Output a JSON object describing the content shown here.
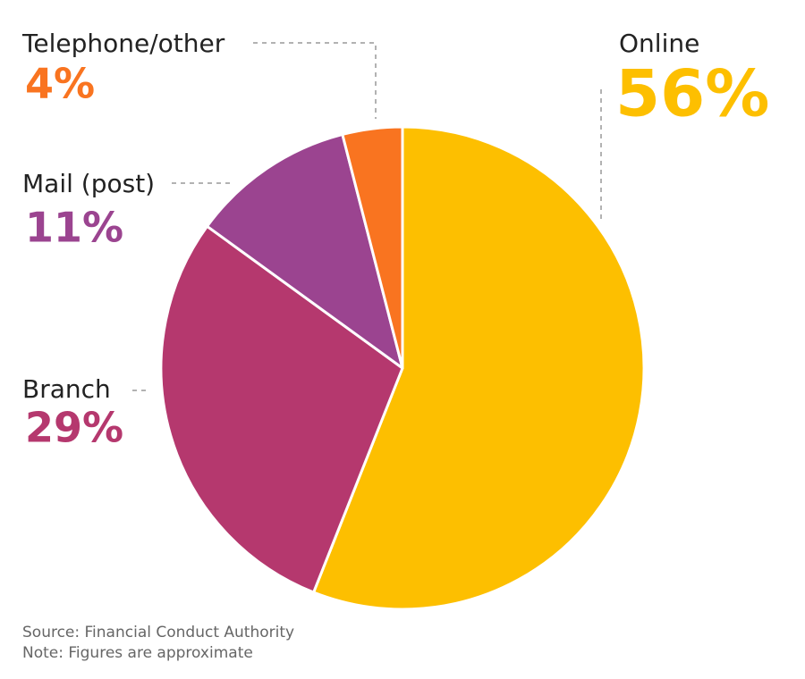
{
  "chart_data": {
    "type": "pie",
    "categories": [
      "Online",
      "Branch",
      "Mail (post)",
      "Telephone/other"
    ],
    "values": [
      56,
      29,
      11,
      4
    ],
    "value_labels": [
      "56%",
      "29%",
      "11%",
      "4%"
    ],
    "colors": [
      "#fdbf00",
      "#b5386e",
      "#9b4490",
      "#f97420"
    ],
    "source": "Source: Financial Conduct Authority",
    "note": "Note: Figures are approximate"
  }
}
